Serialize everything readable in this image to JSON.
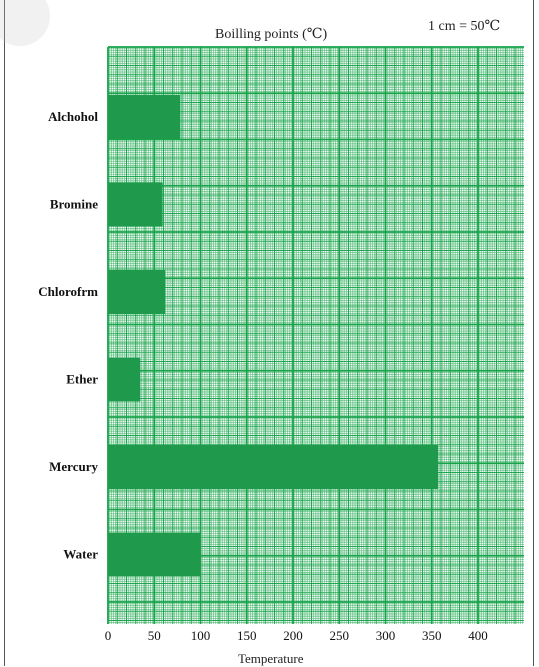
{
  "chart_data": {
    "type": "bar",
    "orientation": "horizontal",
    "title": "Boilling points (℃)",
    "scale_note": "1 cm = 50℃",
    "xlabel": "Temperature",
    "ylabel": "",
    "categories": [
      "Alchohol",
      "Bromine",
      "Chlorofrm",
      "Ether",
      "Mercury",
      "Water"
    ],
    "values": [
      78,
      59,
      62,
      35,
      357,
      100
    ],
    "xticks": [
      0,
      50,
      100,
      150,
      200,
      250,
      300,
      350,
      400
    ],
    "xlim": [
      0,
      450
    ],
    "grid": true,
    "grid_style": "graph paper",
    "colors": {
      "grid": "#16a34a",
      "bar": "#1f9a4d",
      "bar_dark": "#0f8a40",
      "paper": "#ffffff"
    }
  }
}
